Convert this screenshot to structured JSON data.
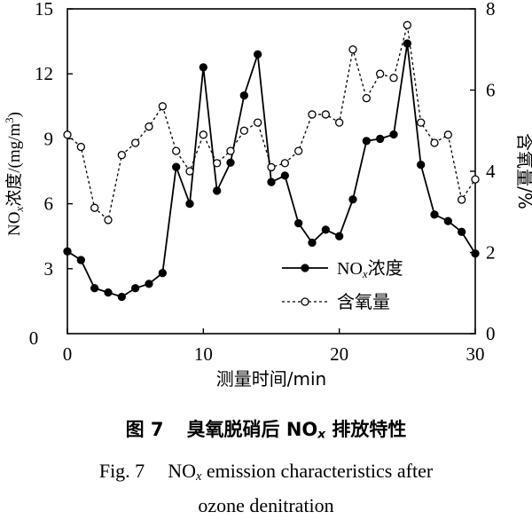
{
  "chart_data": {
    "type": "line",
    "x": [
      0,
      1,
      2,
      3,
      4,
      5,
      6,
      7,
      8,
      9,
      10,
      11,
      12,
      13,
      14,
      15,
      16,
      17,
      18,
      19,
      20,
      21,
      22,
      23,
      24,
      25,
      26,
      27,
      28,
      29,
      30
    ],
    "xlabel": "测量时间/min",
    "ylabel_left": "NOx浓度/(mg/m3)",
    "ylabel_right": "含氧量/%",
    "xlim": [
      0,
      30
    ],
    "ylim_left": [
      0,
      15
    ],
    "ylim_right": [
      0,
      8
    ],
    "xticks": [
      0,
      10,
      20,
      30
    ],
    "yticks_left": [
      3,
      6,
      9,
      12,
      15
    ],
    "yticks_right": [
      0,
      2,
      4,
      6,
      8
    ],
    "grid": false,
    "legend_position": "bottom-center",
    "series": [
      {
        "name": "NOx浓度",
        "axis": "left",
        "marker": "filled-circle",
        "line": "solid",
        "values": [
          3.8,
          3.4,
          2.1,
          1.9,
          1.7,
          2.1,
          2.3,
          2.8,
          7.7,
          6.0,
          12.3,
          6.6,
          7.9,
          11.0,
          12.9,
          7.0,
          7.3,
          5.1,
          4.2,
          4.8,
          4.5,
          6.2,
          8.9,
          9.0,
          9.2,
          13.4,
          7.8,
          5.5,
          5.2,
          4.7,
          3.7
        ]
      },
      {
        "name": "含氧量",
        "axis": "right",
        "marker": "open-circle",
        "line": "dotted",
        "values": [
          4.9,
          4.6,
          3.1,
          2.8,
          4.4,
          4.7,
          5.1,
          5.6,
          4.5,
          4.0,
          4.9,
          4.2,
          4.5,
          5.0,
          5.2,
          4.1,
          4.2,
          4.5,
          5.4,
          5.4,
          5.2,
          7.0,
          5.8,
          6.4,
          6.3,
          7.6,
          5.2,
          4.7,
          4.9,
          3.3,
          3.8
        ]
      }
    ]
  },
  "caption": {
    "cn_label": "图 7",
    "cn_title": "臭氧脱硝后 NOx 排放特性",
    "en_line1": "Fig. 7    NOx emission characteristics after",
    "en_line2": "ozone denitration"
  }
}
